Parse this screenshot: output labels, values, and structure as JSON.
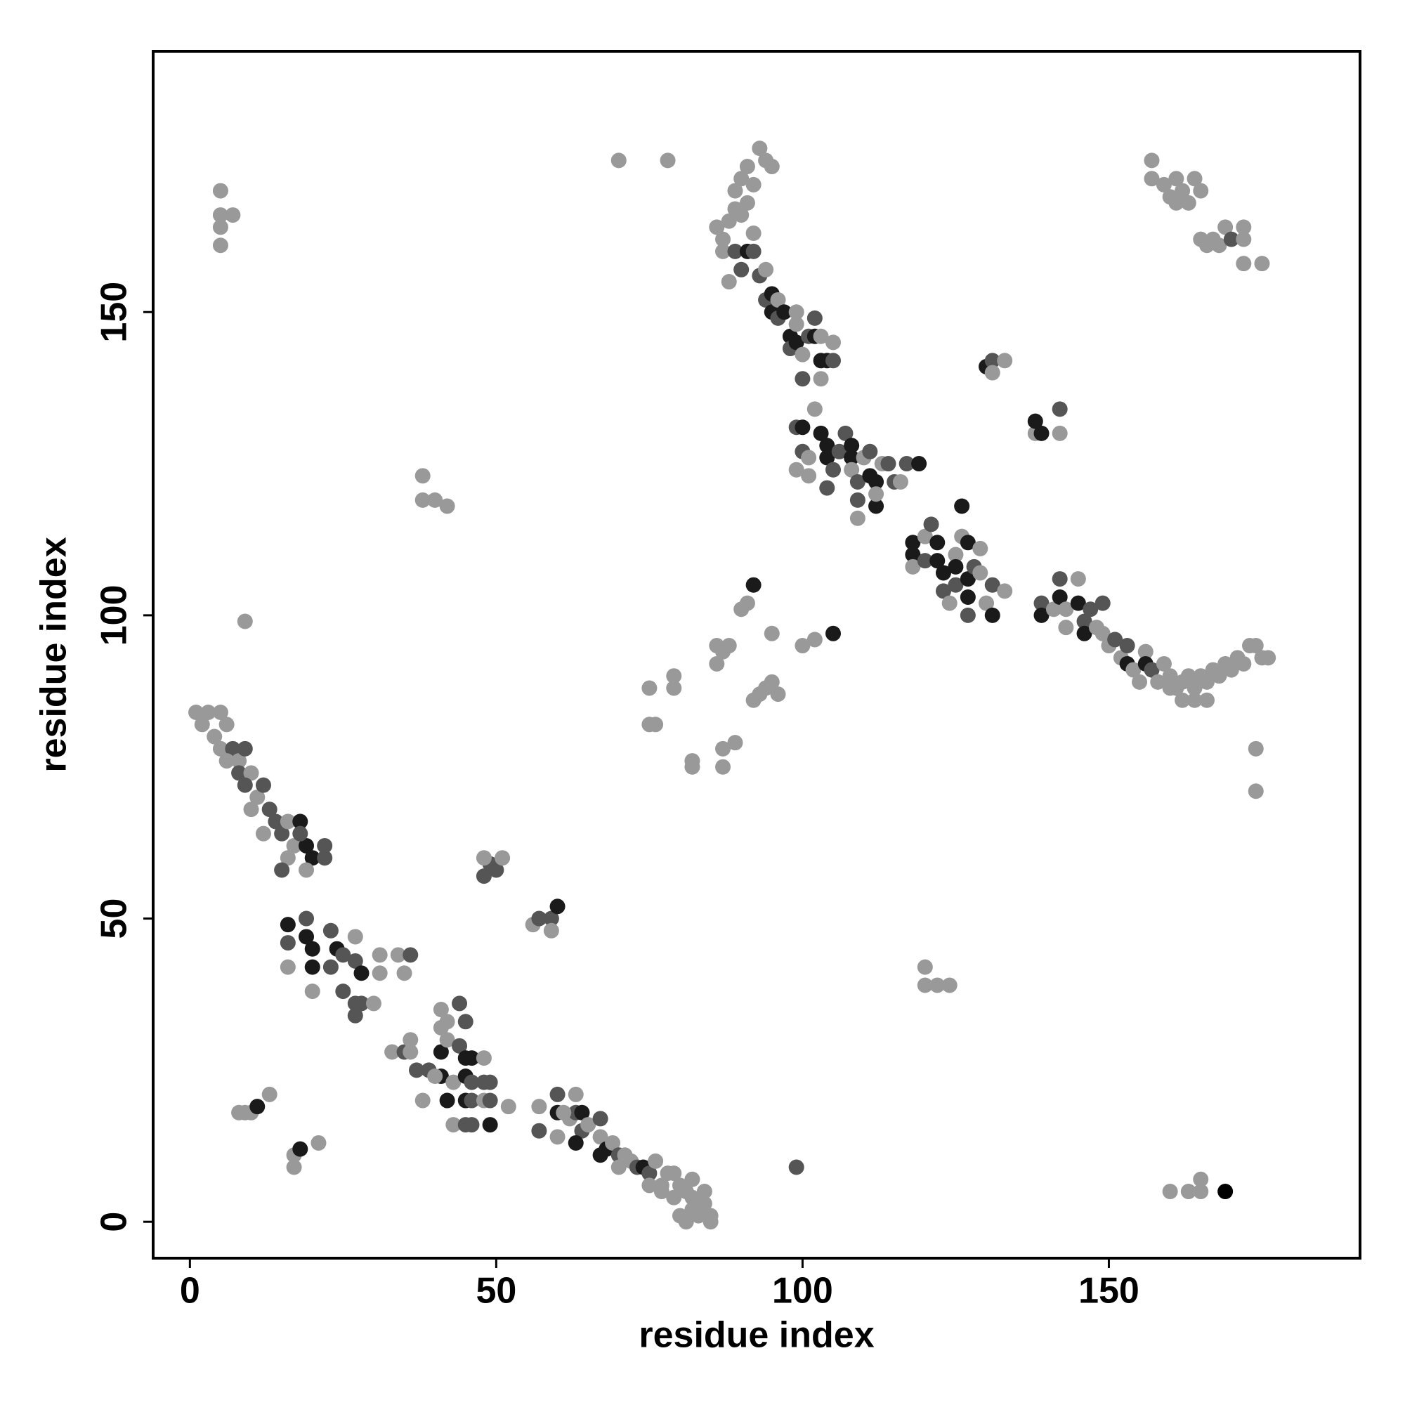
{
  "chart_data": {
    "type": "scatter",
    "x_label": "residue index",
    "y_label": "residue index",
    "xlim": [
      -6,
      191
    ],
    "ylim": [
      -6,
      193
    ],
    "xticks": [
      0,
      50,
      100,
      150
    ],
    "yticks": [
      0,
      50,
      100,
      150
    ],
    "x": [
      1,
      2,
      3,
      4,
      5,
      6,
      5,
      7,
      8,
      9,
      6,
      8,
      10,
      9,
      11,
      12,
      10,
      13,
      14,
      12,
      15,
      16,
      17,
      18,
      19,
      18,
      16,
      15,
      20,
      22,
      22,
      19,
      16,
      19,
      19,
      16,
      20,
      23,
      24,
      23,
      20,
      25,
      27,
      27,
      28,
      31,
      31,
      34,
      36,
      35,
      25,
      27,
      28,
      30,
      20,
      16,
      27,
      33,
      35,
      36,
      36,
      37,
      39,
      41,
      41,
      42,
      41,
      42,
      44,
      45,
      44,
      45,
      46,
      41,
      43,
      45,
      46,
      48,
      48,
      49,
      42,
      45,
      46,
      48,
      49,
      43,
      45,
      46,
      49,
      52,
      38,
      40,
      57,
      57,
      60,
      60,
      62,
      63,
      63,
      64,
      64,
      63,
      65,
      67,
      67,
      67,
      68,
      69,
      70,
      70,
      71,
      72,
      73,
      74,
      75,
      75,
      76,
      77,
      78,
      79,
      80,
      81,
      82,
      82,
      83,
      84,
      85,
      84,
      82,
      80,
      81,
      83,
      85,
      79,
      77,
      61,
      60,
      86,
      87,
      88,
      87,
      89,
      88,
      90,
      91,
      92,
      93,
      94,
      89,
      90,
      91,
      92,
      93,
      94,
      95,
      89,
      90,
      91,
      92,
      94,
      95,
      95,
      96,
      96,
      97,
      98,
      99,
      99,
      98,
      99,
      100,
      101,
      102,
      102,
      103,
      104,
      103,
      105,
      105,
      100,
      103,
      99,
      100,
      100,
      101,
      101,
      102,
      103,
      104,
      104,
      105,
      104,
      106,
      107,
      108,
      108,
      108,
      109,
      109,
      110,
      111,
      111,
      112,
      112,
      112,
      113,
      114,
      115,
      116,
      117,
      119,
      109,
      99,
      118,
      118,
      118,
      120,
      120,
      121,
      122,
      122,
      123,
      123,
      125,
      125,
      125,
      126,
      126,
      127,
      127,
      127,
      128,
      129,
      129,
      130,
      131,
      131,
      133,
      124,
      127,
      139,
      139,
      141,
      142,
      142,
      143,
      143,
      145,
      145,
      146,
      146,
      147,
      148,
      149,
      149,
      150,
      151,
      152,
      153,
      153,
      154,
      155,
      156,
      156,
      157,
      158,
      159,
      160,
      161,
      162,
      163,
      164,
      165,
      166,
      167,
      168,
      169,
      170,
      171,
      172,
      173,
      174,
      175,
      176,
      166,
      164,
      160,
      162,
      5,
      5,
      5,
      5,
      7,
      70,
      78,
      38,
      38,
      40,
      42,
      9,
      92,
      90,
      91,
      86,
      87,
      88,
      86,
      95,
      100,
      102,
      105,
      75,
      79,
      79,
      75,
      76,
      92,
      93,
      94,
      95,
      96,
      87,
      89,
      87,
      82,
      82,
      48,
      49,
      48,
      50,
      51,
      56,
      57,
      59,
      60,
      59,
      8,
      9,
      10,
      11,
      13,
      17,
      17,
      18,
      21,
      99,
      130,
      131,
      133,
      131,
      138,
      138,
      139,
      142,
      142,
      157,
      157,
      159,
      160,
      161,
      161,
      162,
      163,
      164,
      165,
      165,
      166,
      167,
      168,
      169,
      170,
      172,
      172,
      172,
      175,
      174,
      174,
      120,
      120,
      122,
      124,
      160,
      163,
      165,
      165,
      169
    ],
    "values": [
      84,
      82,
      84,
      80,
      84,
      82,
      78,
      78,
      76,
      78,
      76,
      74,
      74,
      72,
      70,
      72,
      68,
      68,
      66,
      64,
      64,
      66,
      62,
      66,
      62,
      64,
      60,
      58,
      60,
      62,
      60,
      58,
      49,
      50,
      47,
      46,
      45,
      48,
      45,
      42,
      42,
      44,
      47,
      43,
      41,
      44,
      41,
      44,
      44,
      41,
      38,
      36,
      36,
      36,
      38,
      42,
      34,
      28,
      28,
      28,
      30,
      25,
      25,
      35,
      32,
      33,
      28,
      30,
      29,
      33,
      36,
      27,
      27,
      24,
      23,
      24,
      23,
      27,
      23,
      23,
      20,
      20,
      20,
      20,
      20,
      16,
      16,
      16,
      16,
      19,
      20,
      24,
      19,
      15,
      18,
      21,
      17,
      18,
      21,
      18,
      15,
      13,
      16,
      17,
      14,
      11,
      12,
      13,
      11,
      9,
      11,
      10,
      9,
      9,
      8,
      6,
      10,
      6,
      8,
      4,
      6,
      5,
      4,
      2,
      2,
      3,
      1,
      5,
      7,
      1,
      0,
      1,
      0,
      8,
      5,
      18,
      14,
      164,
      162,
      165,
      160,
      160,
      155,
      157,
      160,
      160,
      156,
      157,
      170,
      172,
      174,
      171,
      177,
      175,
      174,
      167,
      166,
      168,
      163,
      152,
      153,
      150,
      152,
      149,
      150,
      146,
      150,
      148,
      144,
      145,
      143,
      146,
      149,
      146,
      142,
      142,
      146,
      145,
      142,
      139,
      139,
      131,
      131,
      127,
      126,
      123,
      134,
      130,
      128,
      126,
      124,
      121,
      127,
      130,
      128,
      126,
      124,
      122,
      119,
      126,
      127,
      123,
      122,
      118,
      120,
      125,
      125,
      122,
      122,
      125,
      125,
      116,
      124,
      112,
      110,
      108,
      109,
      113,
      115,
      112,
      109,
      107,
      104,
      110,
      108,
      105,
      113,
      118,
      112,
      106,
      103,
      108,
      111,
      107,
      102,
      100,
      105,
      104,
      102,
      100,
      102,
      100,
      101,
      106,
      103,
      101,
      98,
      106,
      102,
      99,
      97,
      101,
      98,
      102,
      97,
      95,
      96,
      93,
      95,
      92,
      91,
      89,
      94,
      92,
      91,
      89,
      92,
      90,
      88,
      89,
      90,
      88,
      90,
      89,
      91,
      90,
      92,
      91,
      93,
      92,
      95,
      95,
      93,
      93,
      86,
      86,
      88,
      86,
      170,
      166,
      164,
      161,
      166,
      175,
      175,
      123,
      119,
      119,
      118,
      99,
      105,
      101,
      102,
      95,
      94,
      95,
      92,
      97,
      95,
      96,
      97,
      88,
      88,
      90,
      82,
      82,
      86,
      87,
      88,
      89,
      87,
      78,
      79,
      75,
      75,
      76,
      57,
      59,
      60,
      58,
      60,
      49,
      50,
      50,
      52,
      48,
      18,
      18,
      18,
      19,
      21,
      11,
      9,
      12,
      13,
      9,
      141,
      142,
      142,
      140,
      130,
      132,
      130,
      134,
      130,
      175,
      172,
      171,
      169,
      172,
      168,
      170,
      168,
      172,
      170,
      162,
      161,
      162,
      161,
      164,
      162,
      164,
      162,
      158,
      158,
      78,
      71,
      42,
      39,
      39,
      39,
      5,
      5,
      5,
      7,
      5
    ],
    "colors": [
      "#999",
      "#999",
      "#999",
      "#999",
      "#999",
      "#999",
      "#999",
      "#555",
      "#999",
      "#555",
      "#999",
      "#555",
      "#999",
      "#555",
      "#999",
      "#555",
      "#999",
      "#555",
      "#555",
      "#999",
      "#555",
      "#999",
      "#999",
      "#1a1a1a",
      "#1a1a1a",
      "#555",
      "#999",
      "#555",
      "#1a1a1a",
      "#555",
      "#555",
      "#999",
      "#1a1a1a",
      "#555",
      "#1a1a1a",
      "#555",
      "#1a1a1a",
      "#555",
      "#1a1a1a",
      "#555",
      "#1a1a1a",
      "#555",
      "#999",
      "#555",
      "#1a1a1a",
      "#999",
      "#999",
      "#999",
      "#555",
      "#999",
      "#555",
      "#555",
      "#555",
      "#999",
      "#999",
      "#999",
      "#555",
      "#999",
      "#555",
      "#999",
      "#999",
      "#555",
      "#555",
      "#999",
      "#999",
      "#999",
      "#1a1a1a",
      "#999",
      "#555",
      "#555",
      "#555",
      "#1a1a1a",
      "#1a1a1a",
      "#1a1a1a",
      "#999",
      "#1a1a1a",
      "#555",
      "#999",
      "#555",
      "#555",
      "#1a1a1a",
      "#1a1a1a",
      "#555",
      "#999",
      "#555",
      "#999",
      "#555",
      "#555",
      "#1a1a1a",
      "#999",
      "#999",
      "#999",
      "#999",
      "#555",
      "#1a1a1a",
      "#555",
      "#999",
      "#555",
      "#999",
      "#1a1a1a",
      "#555",
      "#1a1a1a",
      "#999",
      "#555",
      "#999",
      "#1a1a1a",
      "#1a1a1a",
      "#999",
      "#555",
      "#999",
      "#999",
      "#999",
      "#555",
      "#1a1a1a",
      "#555",
      "#999",
      "#999",
      "#999",
      "#999",
      "#999",
      "#999",
      "#999",
      "#999",
      "#999",
      "#999",
      "#999",
      "#999",
      "#999",
      "#999",
      "#999",
      "#999",
      "#999",
      "#999",
      "#999",
      "#999",
      "#999",
      "#999",
      "#999",
      "#999",
      "#999",
      "#999",
      "#555",
      "#999",
      "#555",
      "#1a1a1a",
      "#555",
      "#555",
      "#999",
      "#999",
      "#999",
      "#999",
      "#999",
      "#999",
      "#999",
      "#999",
      "#999",
      "#999",
      "#999",
      "#999",
      "#555",
      "#1a1a1a",
      "#1a1a1a",
      "#999",
      "#555",
      "#1a1a1a",
      "#1a1a1a",
      "#999",
      "#999",
      "#555",
      "#1a1a1a",
      "#999",
      "#555",
      "#555",
      "#1a1a1a",
      "#1a1a1a",
      "#1a1a1a",
      "#999",
      "#999",
      "#555",
      "#555",
      "#999",
      "#555",
      "#1a1a1a",
      "#555",
      "#999",
      "#999",
      "#999",
      "#1a1a1a",
      "#1a1a1a",
      "#1a1a1a",
      "#555",
      "#555",
      "#555",
      "#555",
      "#1a1a1a",
      "#1a1a1a",
      "#999",
      "#555",
      "#555",
      "#999",
      "#555",
      "#1a1a1a",
      "#1a1a1a",
      "#1a1a1a",
      "#999",
      "#999",
      "#555",
      "#555",
      "#999",
      "#555",
      "#1a1a1a",
      "#999",
      "#999",
      "#1a1a1a",
      "#1a1a1a",
      "#999",
      "#555",
      "#999",
      "#555",
      "#1a1a1a",
      "#1a1a1a",
      "#1a1a1a",
      "#555",
      "#999",
      "#1a1a1a",
      "#555",
      "#999",
      "#1a1a1a",
      "#1a1a1a",
      "#1a1a1a",
      "#1a1a1a",
      "#555",
      "#999",
      "#999",
      "#999",
      "#1a1a1a",
      "#555",
      "#999",
      "#999",
      "#555",
      "#555",
      "#1a1a1a",
      "#999",
      "#555",
      "#1a1a1a",
      "#999",
      "#999",
      "#999",
      "#1a1a1a",
      "#555",
      "#1a1a1a",
      "#555",
      "#999",
      "#555",
      "#999",
      "#999",
      "#555",
      "#999",
      "#555",
      "#1a1a1a",
      "#999",
      "#999",
      "#999",
      "#1a1a1a",
      "#555",
      "#999",
      "#999",
      "#999",
      "#999",
      "#999",
      "#999",
      "#999",
      "#999",
      "#999",
      "#999",
      "#999",
      "#999",
      "#999",
      "#999",
      "#999",
      "#999",
      "#999",
      "#999",
      "#999",
      "#999",
      "#999",
      "#999",
      "#999",
      "#999",
      "#999",
      "#999",
      "#999",
      "#999",
      "#999",
      "#999",
      "#999",
      "#999",
      "#999",
      "#999",
      "#999",
      "#1a1a1a",
      "#999",
      "#999",
      "#999",
      "#999",
      "#999",
      "#999",
      "#999",
      "#999",
      "#999",
      "#1a1a1a",
      "#999",
      "#999",
      "#999",
      "#999",
      "#999",
      "#999",
      "#999",
      "#999",
      "#999",
      "#999",
      "#999",
      "#999",
      "#999",
      "#999",
      "#999",
      "#555",
      "#555",
      "#999",
      "#555",
      "#999",
      "#999",
      "#555",
      "#555",
      "#1a1a1a",
      "#999",
      "#999",
      "#999",
      "#999",
      "#1a1a1a",
      "#999",
      "#999",
      "#999",
      "#1a1a1a",
      "#999",
      "#555",
      "#1a1a1a",
      "#555",
      "#999",
      "#999",
      "#999",
      "#1a1a1a",
      "#1a1a1a",
      "#555",
      "#999",
      "#999",
      "#999",
      "#999",
      "#999",
      "#999",
      "#999",
      "#999",
      "#999",
      "#999",
      "#999",
      "#999",
      "#999",
      "#999",
      "#999",
      "#999",
      "#555",
      "#999",
      "#999",
      "#999",
      "#999",
      "#999",
      "#999",
      "#999",
      "#999",
      "#999",
      "#999",
      "#999",
      "#999",
      "#999",
      "#999"
    ]
  }
}
